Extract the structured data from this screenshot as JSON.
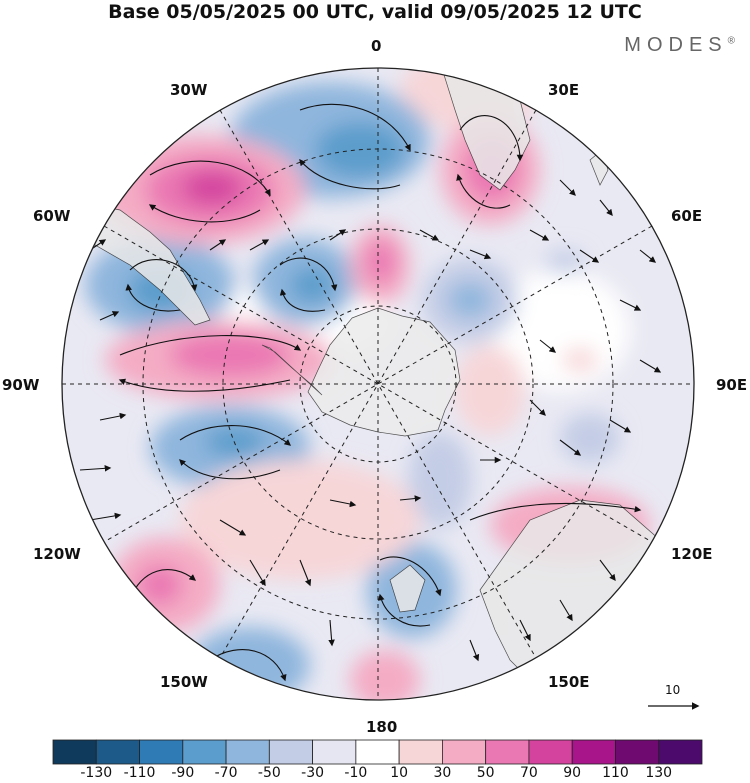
{
  "header": {
    "title": "Base 05/05/2025 00 UTC, valid 09/05/2025 12 UTC",
    "brand": "MODES",
    "brand_mark": "®"
  },
  "map": {
    "projection": "south-polar-stereographic",
    "longitude_labels": [
      "0",
      "30E",
      "60E",
      "90E",
      "120E",
      "150E",
      "180",
      "150W",
      "120W",
      "90W",
      "60W",
      "30W"
    ],
    "reference_vector_label": "10",
    "colors": {
      "land": "#e8e8e8",
      "antarctica": "#ececec",
      "coastline": "#333333",
      "grid": "#222222",
      "arrow": "#111111"
    }
  },
  "colorbar": {
    "tick_labels": [
      "-130",
      "-110",
      "-90",
      "-70",
      "-50",
      "-30",
      "-10",
      "10",
      "30",
      "50",
      "70",
      "90",
      "110",
      "130"
    ],
    "bins": [
      "#103a5c",
      "#1d5a8a",
      "#2f7bb5",
      "#5b9dcc",
      "#8fb6dd",
      "#c4cde6",
      "#e6e6f2",
      "#ffffff",
      "#f7d6d8",
      "#f4acc4",
      "#ea78b3",
      "#d4449f",
      "#a8158a",
      "#6e0a70",
      "#4b0a6c"
    ]
  }
}
